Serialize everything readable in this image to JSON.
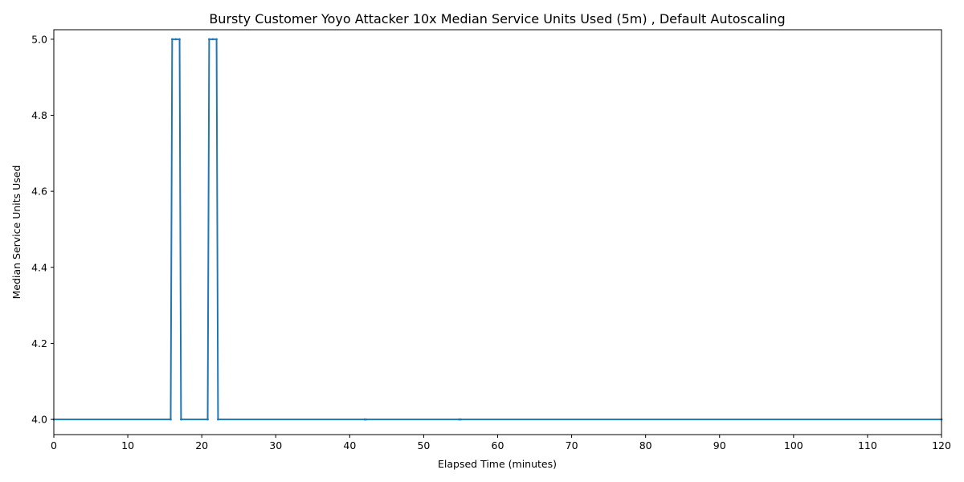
{
  "chart_data": {
    "type": "line",
    "title": "Bursty Customer Yoyo Attacker 10x Median Service Units Used (5m) , Default Autoscaling",
    "xlabel": "Elapsed Time (minutes)",
    "ylabel": "Median Service Units Used",
    "xlim": [
      0,
      120
    ],
    "ylim": [
      3.96,
      5.025
    ],
    "xticks": [
      0,
      10,
      20,
      30,
      40,
      50,
      60,
      70,
      80,
      90,
      100,
      110,
      120
    ],
    "xtick_labels": [
      "0",
      "10",
      "20",
      "30",
      "40",
      "50",
      "60",
      "70",
      "80",
      "90",
      "100",
      "110",
      "120"
    ],
    "yticks": [
      4.0,
      4.2,
      4.4,
      4.6,
      4.8,
      5.0
    ],
    "ytick_labels": [
      "4.0",
      "4.2",
      "4.4",
      "4.6",
      "4.8",
      "5.0"
    ],
    "grid": false,
    "color": "#1f77b4",
    "series": [
      {
        "x": [
          0,
          15.8,
          16.0,
          16.5,
          17.0,
          17.2,
          20.8,
          21.0,
          21.5,
          22.0,
          22.2,
          42.0,
          42.2,
          54.8,
          55.0,
          120
        ],
        "y": [
          4.0,
          4.0,
          5.0,
          5.0,
          5.0,
          4.0,
          4.0,
          5.0,
          5.0,
          5.0,
          4.0,
          4.0,
          4.0,
          4.0,
          4.0,
          4.0
        ]
      }
    ]
  }
}
